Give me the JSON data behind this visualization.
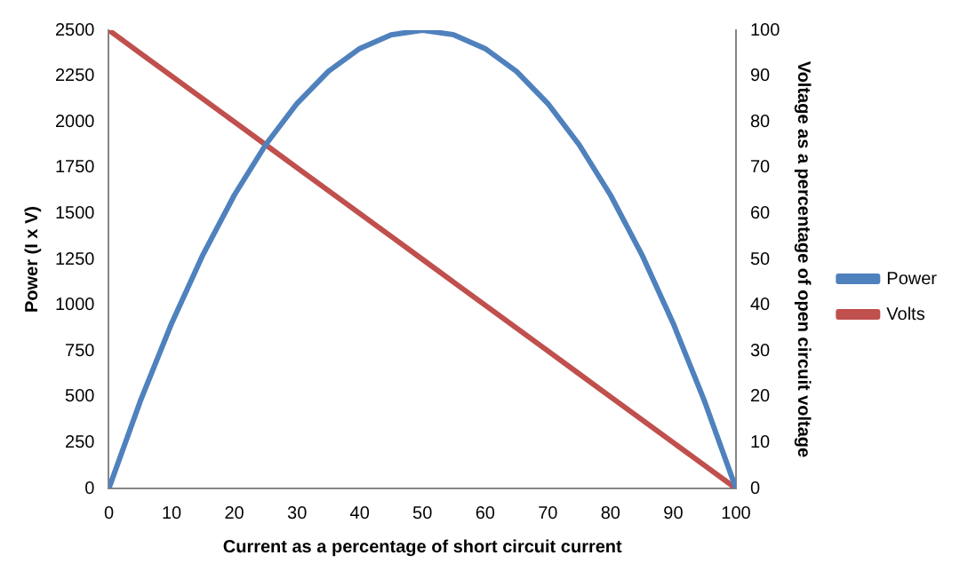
{
  "chart_data": {
    "type": "line",
    "xlabel": "Current as a percentage of short circuit current",
    "ylabel": "Power (I x V)",
    "y2label": "Voltage as a percentage of open circuit voltage",
    "x": [
      0,
      5,
      10,
      15,
      20,
      25,
      30,
      35,
      40,
      45,
      50,
      55,
      60,
      65,
      70,
      75,
      80,
      85,
      90,
      95,
      100
    ],
    "series": [
      {
        "name": "Power",
        "color": "#4f81bd",
        "values": [
          0,
          475,
          900,
          1275,
          1600,
          1875,
          2100,
          2275,
          2400,
          2475,
          2500,
          2475,
          2400,
          2275,
          2100,
          1875,
          1600,
          1275,
          900,
          475,
          0
        ]
      },
      {
        "name": "Volts",
        "color": "#c0504d",
        "axis": "y2",
        "values": [
          100,
          95,
          90,
          85,
          80,
          75,
          70,
          65,
          60,
          55,
          50,
          45,
          40,
          35,
          30,
          25,
          20,
          15,
          10,
          5,
          0
        ]
      }
    ],
    "xlim": [
      0,
      100
    ],
    "xticks": [
      0,
      10,
      20,
      30,
      40,
      50,
      60,
      70,
      80,
      90,
      100
    ],
    "ylim": [
      0,
      2500
    ],
    "yticks": [
      0,
      250,
      500,
      750,
      1000,
      1250,
      1500,
      1750,
      2000,
      2250,
      2500
    ],
    "y2lim": [
      0,
      100
    ],
    "y2ticks": [
      0,
      10,
      20,
      30,
      40,
      50,
      60,
      70,
      80,
      90,
      100
    ],
    "grid": false,
    "legend": "right",
    "marker": "none",
    "line_style": "solid"
  }
}
